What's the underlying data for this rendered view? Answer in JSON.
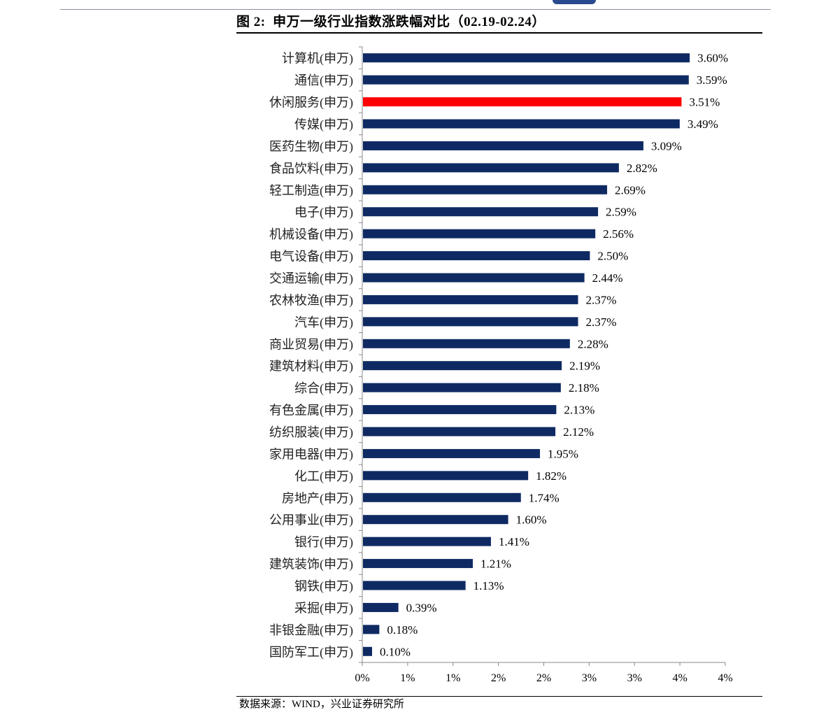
{
  "page": {
    "figure_title": "图 2:  申万一级行业指数涨跌幅对比（02.19-02.24）",
    "source_note": "数据来源：WIND，兴业证券研究所"
  },
  "colors": {
    "bar": "#0f2a63",
    "highlight": "#ff0000",
    "axis": "#888888"
  },
  "chart_data": {
    "type": "bar",
    "orientation": "horizontal",
    "title": "申万一级行业指数涨跌幅对比（02.19-02.24）",
    "xlabel": "",
    "ylabel": "",
    "xlim": [
      0,
      4
    ],
    "x_tick_labels": [
      "0%",
      "1%",
      "1%",
      "2%",
      "2%",
      "3%",
      "3%",
      "4%",
      "4%"
    ],
    "highlight_category": "休闲服务(申万)",
    "categories": [
      "计算机(申万)",
      "通信(申万)",
      "休闲服务(申万)",
      "传媒(申万)",
      "医药生物(申万)",
      "食品饮料(申万)",
      "轻工制造(申万)",
      "电子(申万)",
      "机械设备(申万)",
      "电气设备(申万)",
      "交通运输(申万)",
      "农林牧渔(申万)",
      "汽车(申万)",
      "商业贸易(申万)",
      "建筑材料(申万)",
      "综合(申万)",
      "有色金属(申万)",
      "纺织服装(申万)",
      "家用电器(申万)",
      "化工(申万)",
      "房地产(申万)",
      "公用事业(申万)",
      "银行(申万)",
      "建筑装饰(申万)",
      "钢铁(申万)",
      "采掘(申万)",
      "非银金融(申万)",
      "国防军工(申万)"
    ],
    "values": [
      3.6,
      3.59,
      3.51,
      3.49,
      3.09,
      2.82,
      2.69,
      2.59,
      2.56,
      2.5,
      2.44,
      2.37,
      2.37,
      2.28,
      2.19,
      2.18,
      2.13,
      2.12,
      1.95,
      1.82,
      1.74,
      1.6,
      1.41,
      1.21,
      1.13,
      0.39,
      0.18,
      0.1
    ],
    "value_labels": [
      "3.60%",
      "3.59%",
      "3.51%",
      "3.49%",
      "3.09%",
      "2.82%",
      "2.69%",
      "2.59%",
      "2.56%",
      "2.50%",
      "2.44%",
      "2.37%",
      "2.37%",
      "2.28%",
      "2.19%",
      "2.18%",
      "2.13%",
      "2.12%",
      "1.95%",
      "1.82%",
      "1.74%",
      "1.60%",
      "1.41%",
      "1.21%",
      "1.13%",
      "0.39%",
      "0.18%",
      "0.10%"
    ]
  }
}
